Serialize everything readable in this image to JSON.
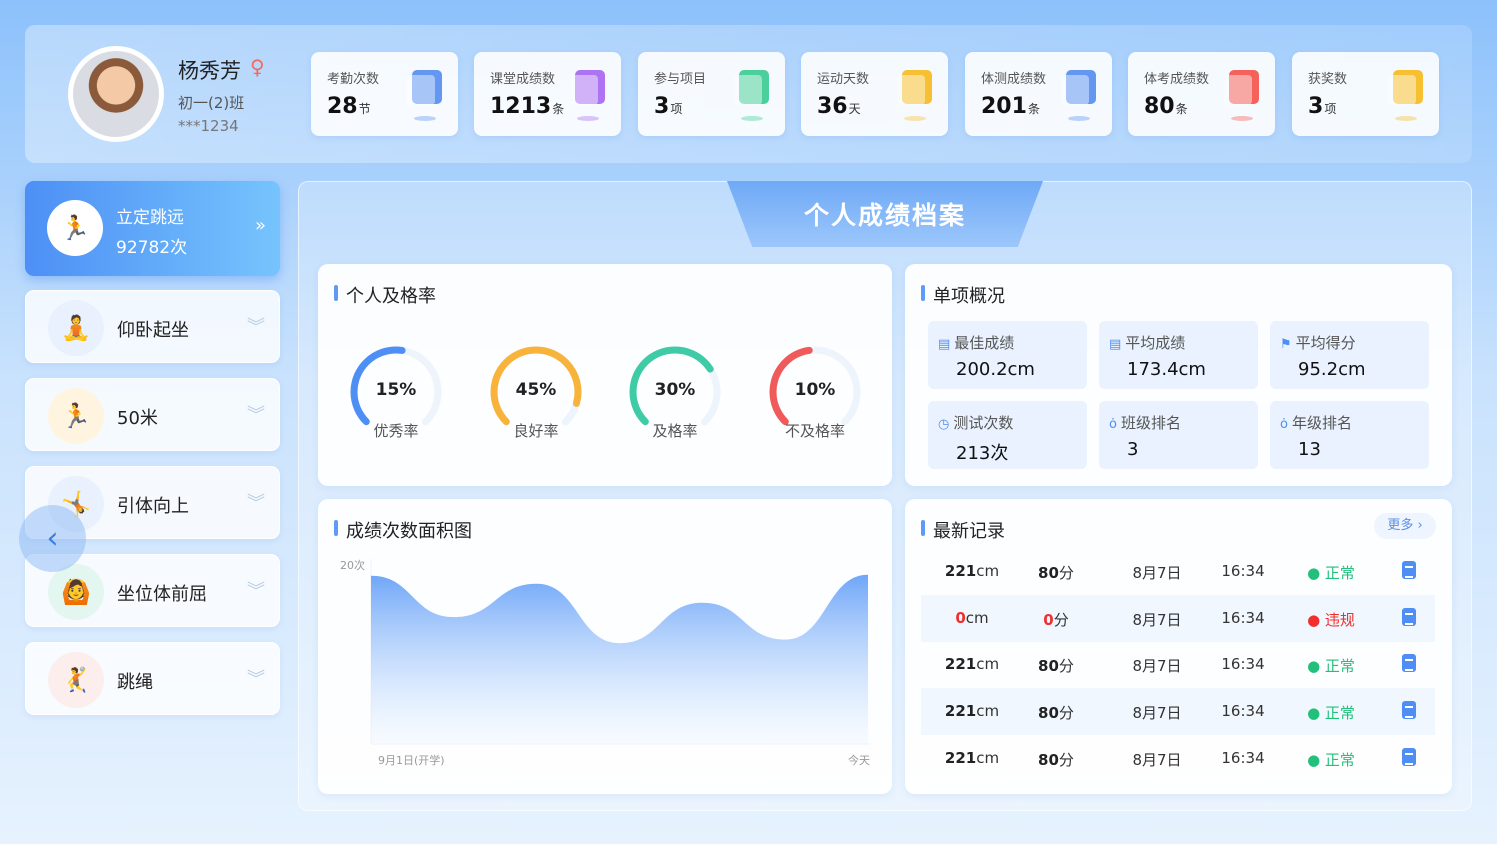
{
  "profile": {
    "name": "杨秀芳",
    "gender_icon": "female-icon",
    "class": "初一(2)班",
    "id": "***1234"
  },
  "stats": [
    {
      "label": "考勤次数",
      "value": "28",
      "unit": "节",
      "icon": "calendar-check-icon",
      "color": "#4a86f0"
    },
    {
      "label": "课堂成绩数",
      "value": "1213",
      "unit": "条",
      "icon": "grade-doc-icon",
      "color": "#a15cf0"
    },
    {
      "label": "参与项目",
      "value": "3",
      "unit": "项",
      "icon": "cabinet-icon",
      "color": "#2ec98a"
    },
    {
      "label": "运动天数",
      "value": "36",
      "unit": "天",
      "icon": "note-icon",
      "color": "#f8b710"
    },
    {
      "label": "体测成绩数",
      "value": "201",
      "unit": "条",
      "icon": "test-doc-icon",
      "color": "#4a86f0"
    },
    {
      "label": "体考成绩数",
      "value": "80",
      "unit": "条",
      "icon": "exam-clipboard-icon",
      "color": "#f5473f"
    },
    {
      "label": "获奖数",
      "value": "3",
      "unit": "项",
      "icon": "medal-icon",
      "color": "#f8b710"
    }
  ],
  "sidebar": {
    "active": {
      "label": "立定跳远",
      "count": "92782次"
    },
    "items": [
      {
        "label": "仰卧起坐",
        "bg": "#e8f1fd"
      },
      {
        "label": "50米",
        "bg": "#fff4df"
      },
      {
        "label": "引体向上",
        "bg": "#e8f1fd"
      },
      {
        "label": "坐位体前屈",
        "bg": "#e3f6ef"
      },
      {
        "label": "跳绳",
        "bg": "#fdeeee"
      }
    ]
  },
  "main": {
    "title": "个人成绩档案"
  },
  "pass_rate": {
    "title": "个人及格率",
    "gauges": [
      {
        "label": "优秀率",
        "value": 15,
        "text": "15%",
        "color": "#4d8ff5"
      },
      {
        "label": "良好率",
        "value": 45,
        "text": "45%",
        "color": "#f8b33a"
      },
      {
        "label": "及格率",
        "value": 30,
        "text": "30%",
        "color": "#3fcba6"
      },
      {
        "label": "不及格率",
        "value": 10,
        "text": "10%",
        "color": "#f05a5a"
      }
    ]
  },
  "summary": {
    "title": "单项概况",
    "tiles": [
      {
        "label": "最佳成绩",
        "value": "200.2cm",
        "icon": "doc-icon"
      },
      {
        "label": "平均成绩",
        "value": "173.4cm",
        "icon": "doc-icon"
      },
      {
        "label": "平均得分",
        "value": "95.2cm",
        "icon": "flag-icon"
      },
      {
        "label": "测试次数",
        "value": "213次",
        "icon": "clock-icon"
      },
      {
        "label": "班级排名",
        "value": "3",
        "icon": "medal-icon"
      },
      {
        "label": "年级排名",
        "value": "13",
        "icon": "medal-icon"
      }
    ]
  },
  "chart_data": {
    "type": "area",
    "title": "成绩次数面积图",
    "ylabel": "20次",
    "ylim": [
      0,
      20
    ],
    "x_start_label": "9月1日(开学)",
    "x_end_label": "今天",
    "values": [
      18.7,
      14.1,
      17.8,
      11.2,
      15.7,
      11.6,
      18.8
    ],
    "color": "#6fa6f8",
    "grid": false
  },
  "records": {
    "title": "最新记录",
    "more": "更多",
    "rows": [
      {
        "distance": "221",
        "dunit": "cm",
        "score": "80",
        "sunit": "分",
        "date": "8月7日",
        "time": "16:34",
        "status": "正常",
        "ok": true
      },
      {
        "distance": "0",
        "dunit": "cm",
        "score": "0",
        "sunit": "分",
        "date": "8月7日",
        "time": "16:34",
        "status": "违规",
        "ok": false
      },
      {
        "distance": "221",
        "dunit": "cm",
        "score": "80",
        "sunit": "分",
        "date": "8月7日",
        "time": "16:34",
        "status": "正常",
        "ok": true
      },
      {
        "distance": "221",
        "dunit": "cm",
        "score": "80",
        "sunit": "分",
        "date": "8月7日",
        "time": "16:34",
        "status": "正常",
        "ok": true
      },
      {
        "distance": "221",
        "dunit": "cm",
        "score": "80",
        "sunit": "分",
        "date": "8月7日",
        "time": "16:34",
        "status": "正常",
        "ok": true
      }
    ]
  }
}
